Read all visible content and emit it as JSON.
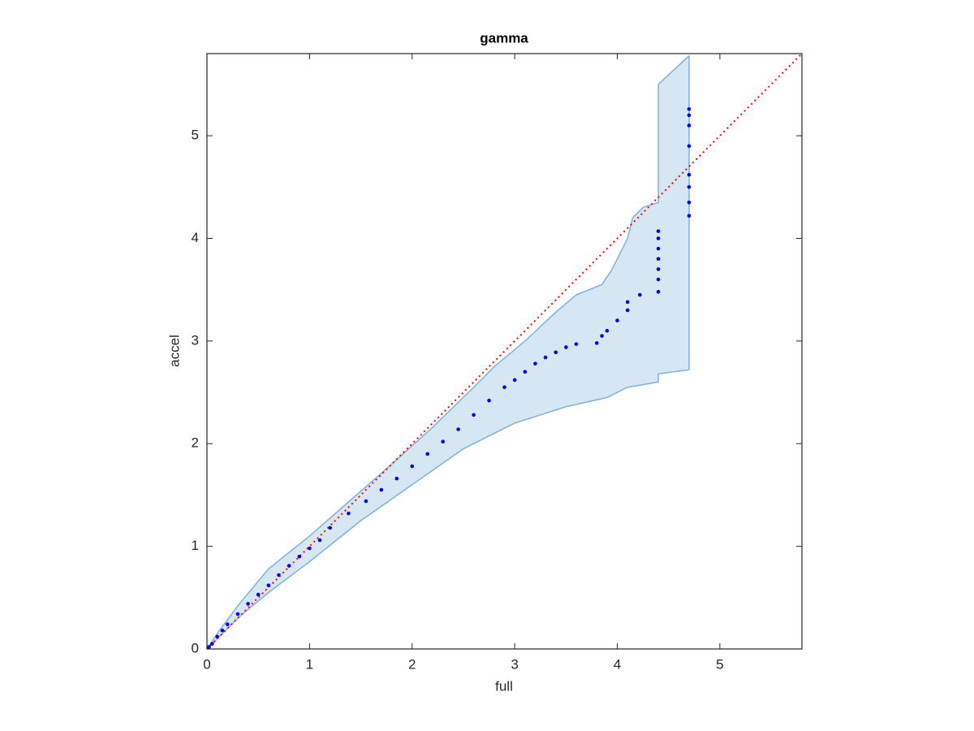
{
  "chart_data": {
    "type": "qq-band",
    "title": "gamma",
    "x_label": "full",
    "y_label": "accel",
    "xlim": [
      0,
      5.8
    ],
    "ylim": [
      0,
      5.8
    ],
    "xticks": [
      0,
      1,
      2,
      3,
      4,
      5
    ],
    "yticks": [
      0,
      1,
      2,
      3,
      4,
      5
    ],
    "points": {
      "color": "#0000e6",
      "x": [
        0.02,
        0.05,
        0.1,
        0.15,
        0.2,
        0.3,
        0.4,
        0.5,
        0.6,
        0.7,
        0.8,
        0.9,
        1.0,
        1.1,
        1.2,
        1.38,
        1.55,
        1.7,
        1.85,
        2.0,
        2.15,
        2.3,
        2.45,
        2.6,
        2.75,
        2.9,
        3.0,
        3.1,
        3.2,
        3.3,
        3.4,
        3.5,
        3.6,
        3.8,
        3.85,
        3.9,
        4.0,
        4.1,
        4.1,
        4.22,
        4.4,
        4.4,
        4.4,
        4.4,
        4.4,
        4.4,
        4.4,
        4.7,
        4.7,
        4.7,
        4.7,
        4.7,
        4.7,
        4.7,
        4.7
      ],
      "y": [
        0.02,
        0.05,
        0.12,
        0.18,
        0.24,
        0.34,
        0.44,
        0.53,
        0.62,
        0.72,
        0.81,
        0.9,
        0.98,
        1.06,
        1.18,
        1.32,
        1.44,
        1.55,
        1.66,
        1.78,
        1.9,
        2.02,
        2.14,
        2.28,
        2.42,
        2.55,
        2.62,
        2.7,
        2.78,
        2.84,
        2.89,
        2.94,
        2.97,
        2.98,
        3.05,
        3.1,
        3.2,
        3.3,
        3.38,
        3.45,
        3.48,
        3.6,
        3.7,
        3.8,
        3.9,
        4.0,
        4.07,
        4.22,
        4.35,
        4.5,
        4.62,
        4.9,
        5.1,
        5.2,
        5.26
      ]
    },
    "band": {
      "color": "#7fb2d9",
      "fill": "#d6e6f3",
      "x_upper": [
        0,
        0.1,
        0.3,
        0.6,
        1.0,
        1.4,
        1.8,
        2.2,
        2.6,
        2.8,
        3.1,
        3.4,
        3.6,
        3.85,
        3.95,
        4.1,
        4.15,
        4.25,
        4.4,
        4.4,
        4.7
      ],
      "upper": [
        0,
        0.15,
        0.42,
        0.78,
        1.1,
        1.45,
        1.8,
        2.16,
        2.55,
        2.75,
        3.0,
        3.28,
        3.45,
        3.55,
        3.7,
        4.0,
        4.2,
        4.3,
        4.35,
        5.5,
        5.78
      ],
      "x_lower": [
        0,
        0.1,
        0.3,
        0.6,
        1.0,
        1.5,
        2.0,
        2.5,
        3.0,
        3.5,
        3.9,
        4.1,
        4.4,
        4.4,
        4.7
      ],
      "lower": [
        0,
        0.1,
        0.3,
        0.55,
        0.85,
        1.25,
        1.6,
        1.95,
        2.2,
        2.36,
        2.45,
        2.55,
        2.6,
        2.68,
        2.72
      ]
    },
    "reference": {
      "color": "#ff0000",
      "x": [
        0,
        5.8
      ],
      "y": [
        0,
        5.8
      ]
    }
  }
}
